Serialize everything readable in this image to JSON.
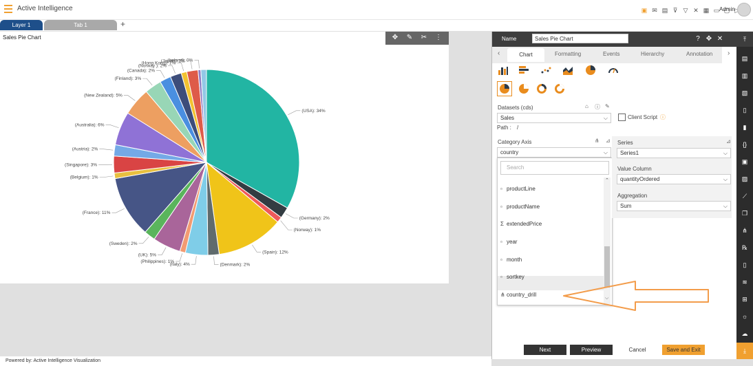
{
  "app": {
    "title": "Active Intelligence",
    "user": "Admin"
  },
  "tabs": [
    {
      "label": "Layer 1",
      "active": true
    },
    {
      "label": "Tab 1",
      "active": false
    }
  ],
  "toolbar_icons": [
    "save-icon",
    "mail-icon",
    "comment-icon",
    "filter-clear-icon",
    "filter-icon",
    "shuffle-icon",
    "grid-icon",
    "monitor-icon",
    "present-icon",
    "play-icon"
  ],
  "chart": {
    "title": "Sales Pie Chart",
    "toolbar_icons": [
      "move-icon",
      "edit-icon",
      "tools-icon",
      "more-icon"
    ]
  },
  "chart_data": {
    "type": "pie",
    "title": "Sales Pie Chart",
    "slices": [
      {
        "label": "(USA): 34%",
        "value": 34,
        "color": "#22b5a3"
      },
      {
        "label": "(Germany): 2%",
        "value": 2,
        "color": "#333c42"
      },
      {
        "label": "(Norway): 1%",
        "value": 1,
        "color": "#ef5a5a"
      },
      {
        "label": "(Spain): 12%",
        "value": 12,
        "color": "#f0c419"
      },
      {
        "label": "(Denmark): 2%",
        "value": 2,
        "color": "#5f6b6d"
      },
      {
        "label": "(Italy): 4%",
        "value": 4,
        "color": "#7fcde8"
      },
      {
        "label": "(Philippines): 1%",
        "value": 1,
        "color": "#f29b72"
      },
      {
        "label": "(UK): 5%",
        "value": 5,
        "color": "#a9659a"
      },
      {
        "label": "(Sweden): 2%",
        "value": 2,
        "color": "#5ab55c"
      },
      {
        "label": "(France): 11%",
        "value": 11,
        "color": "#465586"
      },
      {
        "label": "(Belgium): 1%",
        "value": 1,
        "color": "#e8c040"
      },
      {
        "label": "(Singapore): 3%",
        "value": 3,
        "color": "#d94444"
      },
      {
        "label": "(Austria): 2%",
        "value": 2,
        "color": "#74a9e6"
      },
      {
        "label": "(Australia): 6%",
        "value": 6,
        "color": "#8f72d6"
      },
      {
        "label": "(New Zealand): 5%",
        "value": 5,
        "color": "#ed9f61"
      },
      {
        "label": "(Finland): 3%",
        "value": 3,
        "color": "#98d6b6"
      },
      {
        "label": "(Canada): 2%",
        "value": 2,
        "color": "#4a8fe0"
      },
      {
        "label": "(Norway ): 2%",
        "value": 2,
        "color": "#3d4d7a"
      },
      {
        "label": "(Hong Kong): 1%",
        "value": 1,
        "color": "#f2c230"
      },
      {
        "label": "(Japan): 2%",
        "value": 2,
        "color": "#de5b49"
      },
      {
        "label": "(Ireland): 0%",
        "value": 0.5,
        "color": "#8e7cc3"
      },
      {
        "label": "",
        "value": 1,
        "color": "#93c8e6"
      }
    ]
  },
  "panel": {
    "name_label": "Name",
    "name_value": "Sales Pie Chart",
    "tabs": [
      "Chart",
      "Formatting",
      "Events",
      "Hierarchy",
      "Annotation"
    ],
    "datasets_label": "Datasets (cds)",
    "dataset_value": "Sales",
    "path_label": "Path :",
    "path_value": "/",
    "client_script_label": "Client Script",
    "category_axis_label": "Category Axis",
    "category_value": "country",
    "search_placeholder": "Search",
    "fields": [
      {
        "label": "productLine",
        "icon": "calendar-icon"
      },
      {
        "label": "productName",
        "icon": "calendar-icon"
      },
      {
        "label": "extendedPrice",
        "icon": "sigma-icon"
      },
      {
        "label": "year",
        "icon": "calendar-icon"
      },
      {
        "label": "month",
        "icon": "calendar-icon"
      },
      {
        "label": "sortkey",
        "icon": "calendar-icon"
      },
      {
        "label": "country_drill",
        "icon": "hierarchy-icon"
      }
    ],
    "series_label": "Series",
    "series_value": "Series1",
    "value_column_label": "Value Column",
    "value_column_value": "quantityOrdered",
    "aggregation_label": "Aggregation",
    "aggregation_value": "Sum",
    "buttons": {
      "next": "Next",
      "preview": "Preview",
      "cancel": "Cancel",
      "save": "Save and Exit"
    }
  },
  "footer": "Powered by: Active Intelligence Visualization",
  "colors": {
    "accent": "#f0a030",
    "tab_active": "#1e4f8a",
    "panel_header": "#3d3d3d",
    "arrow": "#f39c4a"
  }
}
